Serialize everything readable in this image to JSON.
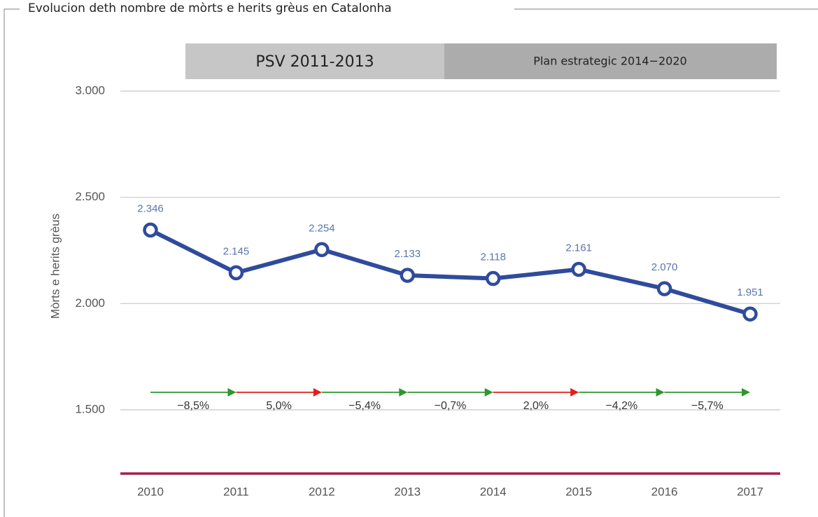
{
  "chart_data": {
    "type": "line",
    "title": "Evolucion deth nombre de mòrts e herits grèus en Catalonha",
    "y_label": "Mòrts e herits grèus",
    "periods": [
      "PSV 2011-2013",
      "Plan estrategic 2014−2020"
    ],
    "categories": [
      "2010",
      "2011",
      "2012",
      "2013",
      "2014",
      "2015",
      "2016",
      "2017"
    ],
    "values": [
      2346,
      2145,
      2254,
      2133,
      2118,
      2161,
      2070,
      1951
    ],
    "value_labels": [
      "2.346",
      "2.145",
      "2.254",
      "2.133",
      "2.118",
      "2.161",
      "2.070",
      "1.951"
    ],
    "color": "#2f4b9c",
    "label_color": "#5a74b0",
    "changes": [
      -8.5,
      5.0,
      -5.4,
      -0.7,
      2.0,
      -4.2,
      -5.7
    ],
    "change_labels": [
      "−8,5%",
      "5,0%",
      "−5,4%",
      "−0,7%",
      "2,0%",
      "−4,2%",
      "−5,7%"
    ],
    "change_colors": {
      "decrease": "#2e962e",
      "increase": "#e0201c"
    },
    "ylim": [
      1200,
      3000
    ],
    "yticks": [
      {
        "value": 1500,
        "label": "1.500"
      },
      {
        "value": 2000,
        "label": "2.000"
      },
      {
        "value": 2500,
        "label": "2.500"
      },
      {
        "value": 3000,
        "label": "3.000"
      }
    ],
    "grid": true
  }
}
